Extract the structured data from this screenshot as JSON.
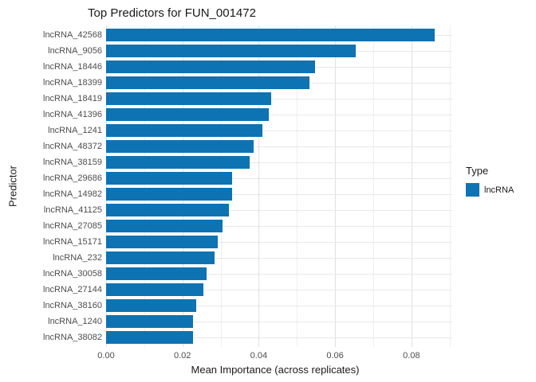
{
  "chart_data": {
    "type": "bar",
    "orientation": "horizontal",
    "title": "Top Predictors for FUN_001472",
    "xlabel": "Mean Importance (across replicates)",
    "ylabel": "Predictor",
    "categories": [
      "lncRNA_42568",
      "lncRNA_9056",
      "lncRNA_18446",
      "lncRNA_18399",
      "lncRNA_18419",
      "lncRNA_41396",
      "lncRNA_1241",
      "lncRNA_48372",
      "lncRNA_38159",
      "lncRNA_29686",
      "lncRNA_14982",
      "lncRNA_41125",
      "lncRNA_27085",
      "lncRNA_15171",
      "lncRNA_232",
      "lncRNA_30058",
      "lncRNA_27144",
      "lncRNA_38160",
      "lncRNA_1240",
      "lncRNA_38082"
    ],
    "values": [
      0.0861,
      0.0655,
      0.0548,
      0.0532,
      0.0432,
      0.0426,
      0.0409,
      0.0386,
      0.0376,
      0.0331,
      0.033,
      0.0322,
      0.0305,
      0.0292,
      0.0285,
      0.0264,
      0.0256,
      0.0236,
      0.0228,
      0.0227
    ],
    "xlim": [
      0,
      0.09
    ],
    "xticks": [
      0.0,
      0.02,
      0.04,
      0.06,
      0.08
    ],
    "xtick_labels": [
      "0.00",
      "0.02",
      "0.04",
      "0.06",
      "0.08"
    ],
    "grid": true,
    "gridline_step": 0.01,
    "legend_position": "right",
    "legend": {
      "title": "Type",
      "entries": [
        {
          "label": "lncRNA",
          "color": "#0E73B2"
        }
      ]
    },
    "colors": {
      "bar": "#0E73B2",
      "axis_text": "#4d4d4d",
      "title_text": "#1a1a1a",
      "grid_major": "#e2e2e2",
      "grid_minor": "#efefef"
    }
  }
}
